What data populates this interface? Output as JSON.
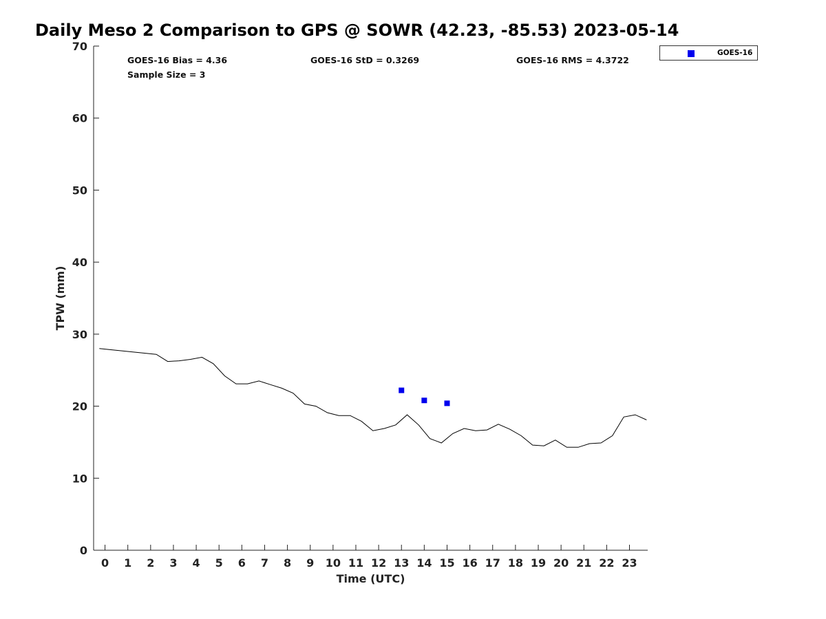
{
  "chart_data": {
    "type": "line",
    "title": "Daily Meso 2 Comparison to GPS @ SOWR (42.23, -85.53) 2023-05-14",
    "xlabel": "Time (UTC)",
    "ylabel": "TPW (mm)",
    "xlim": [
      -0.5,
      23.8
    ],
    "ylim": [
      0,
      70
    ],
    "x_ticks": [
      0,
      1,
      2,
      3,
      4,
      5,
      6,
      7,
      8,
      9,
      10,
      11,
      12,
      13,
      14,
      15,
      16,
      17,
      18,
      19,
      20,
      21,
      22,
      23
    ],
    "y_ticks": [
      0,
      10,
      20,
      30,
      40,
      50,
      60,
      70
    ],
    "grid": false,
    "legend_position": "top-right outside",
    "stats": {
      "bias": "GOES-16 Bias = 4.36",
      "sample_size": "Sample Size = 3",
      "std": "GOES-16 StD = 0.3269",
      "rms": "GOES-16 RMS = 4.3722"
    },
    "series": [
      {
        "kind": "line",
        "color": "#000000",
        "x": [
          -0.25,
          2.25,
          2.75,
          3.25,
          3.75,
          4.25,
          4.75,
          5.25,
          5.75,
          6.25,
          6.75,
          7.25,
          7.75,
          8.25,
          8.75,
          9.25,
          9.75,
          10.25,
          10.75,
          11.25,
          11.75,
          12.25,
          12.75,
          13.25,
          13.75,
          14.25,
          14.75,
          15.25,
          15.75,
          16.25,
          16.75,
          17.25,
          17.75,
          18.25,
          18.75,
          19.25,
          19.75,
          20.25,
          20.75,
          21.25,
          21.75,
          22.25,
          22.75,
          23.25,
          23.75
        ],
        "y": [
          28.0,
          27.2,
          26.2,
          26.3,
          26.5,
          26.8,
          25.9,
          24.2,
          23.1,
          23.1,
          23.5,
          23.0,
          22.5,
          21.8,
          20.3,
          20.0,
          19.1,
          18.7,
          18.7,
          17.9,
          16.6,
          16.9,
          17.4,
          18.8,
          17.4,
          15.5,
          14.9,
          16.2,
          16.9,
          16.6,
          16.7,
          17.5,
          16.8,
          15.9,
          14.6,
          14.5,
          15.3,
          14.3,
          14.3,
          14.8,
          14.9,
          15.9,
          18.5,
          18.8,
          18.1
        ]
      },
      {
        "kind": "scatter",
        "name": "GOES-16",
        "color": "#0000ee",
        "x": [
          13,
          14,
          15
        ],
        "y": [
          22.2,
          20.8,
          20.4
        ]
      }
    ]
  }
}
